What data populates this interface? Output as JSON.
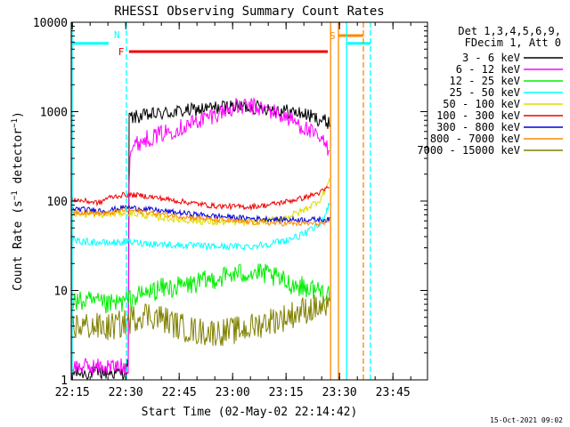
{
  "chart_data": {
    "type": "line",
    "title": "RHESSI Observing Summary Count Rates",
    "xlabel": "Start Time (02-May-02 22:14:42)",
    "ylabel": "Count Rate (s⁻¹ detector⁻¹)",
    "ylabel_main": "Count Rate (s",
    "ylabel_sup1": "−1",
    "ylabel_mid": " detector",
    "ylabel_sup2": "−1",
    "ylabel_end": ")",
    "yscale": "log",
    "ylim": [
      1,
      10000
    ],
    "xlim_minutes": [
      0,
      100
    ],
    "x_ticks": [
      "22:15",
      "22:30",
      "22:45",
      "23:00",
      "23:15",
      "23:30",
      "23:45"
    ],
    "x_tick_minutes": [
      0.3,
      15.3,
      30.3,
      45.3,
      60.3,
      75.3,
      90.3
    ],
    "y_ticks": [
      1,
      10,
      100,
      1000,
      10000
    ],
    "y_tick_labels": [
      "1",
      "10",
      "100",
      "1000",
      "10000"
    ],
    "legend_header": [
      "Det 1,3,4,5,6,9,",
      "FDecim 1, Att 0"
    ],
    "legend_placement": "right",
    "footer_date": "15-Oct-2021 09:02",
    "series": [
      {
        "name": "3 - 6 keV",
        "color": "#000000",
        "x": [
          0,
          14.5,
          16.0,
          16.2,
          25,
          35,
          45,
          55,
          65,
          72.5
        ],
        "y": [
          1.2,
          1.2,
          1.5,
          850,
          950,
          1050,
          1150,
          1100,
          950,
          750
        ]
      },
      {
        "name": "6 - 12 keV",
        "color": "#ff00ff",
        "x": [
          0,
          14.5,
          16.0,
          16.3,
          20,
          30,
          40,
          45,
          50,
          55,
          60,
          65,
          70,
          72.5
        ],
        "y": [
          1.4,
          1.4,
          1.4,
          380,
          480,
          650,
          920,
          1100,
          1150,
          1050,
          880,
          680,
          480,
          380
        ]
      },
      {
        "name": "12 - 25 keV",
        "color": "#00ee00",
        "x": [
          0,
          5,
          10,
          15,
          20,
          25,
          30,
          35,
          40,
          45,
          50,
          55,
          60,
          65,
          70,
          72.5
        ],
        "y": [
          7.5,
          7.5,
          6.8,
          7.5,
          9,
          10.5,
          11,
          12,
          13.5,
          15,
          16,
          15,
          12.5,
          11,
          10,
          9.5
        ]
      },
      {
        "name": "25 - 50 keV",
        "color": "#00ffff",
        "x": [
          0,
          10,
          15,
          20,
          30,
          40,
          50,
          55,
          60,
          65,
          70,
          72.5
        ],
        "y": [
          36,
          34,
          35,
          34,
          32,
          31,
          31,
          33,
          36,
          42,
          55,
          95
        ]
      },
      {
        "name": "50 - 100 keV",
        "color": "#dddd00",
        "x": [
          0,
          10,
          15,
          20,
          30,
          40,
          50,
          55,
          60,
          65,
          70,
          72.5
        ],
        "y": [
          72,
          70,
          75,
          70,
          62,
          58,
          58,
          60,
          65,
          78,
          105,
          170
        ]
      },
      {
        "name": "100 - 300 keV",
        "color": "#ee0000",
        "x": [
          0,
          8,
          10,
          15,
          20,
          30,
          40,
          50,
          55,
          60,
          65,
          70,
          72.5
        ],
        "y": [
          105,
          95,
          108,
          118,
          115,
          100,
          88,
          86,
          90,
          98,
          108,
          125,
          145
        ]
      },
      {
        "name": "300 - 800 keV",
        "color": "#0000dd",
        "x": [
          0,
          10,
          15,
          20,
          30,
          40,
          50,
          60,
          70,
          72.5
        ],
        "y": [
          82,
          78,
          85,
          82,
          74,
          68,
          64,
          62,
          62,
          62
        ]
      },
      {
        "name": "800 - 7000 keV",
        "color": "#ff8800",
        "x": [
          0,
          10,
          15,
          20,
          30,
          40,
          50,
          60,
          70,
          72.5
        ],
        "y": [
          76,
          72,
          80,
          76,
          68,
          62,
          58,
          56,
          56,
          56
        ]
      },
      {
        "name": "7000 - 15000 keV",
        "color": "#808000",
        "x": [
          0,
          5,
          10,
          15,
          20,
          25,
          30,
          35,
          40,
          45,
          50,
          55,
          60,
          65,
          70,
          72.5
        ],
        "y": [
          4,
          4,
          3.8,
          4.3,
          5.5,
          5,
          4,
          3.5,
          3.4,
          3.5,
          3.8,
          4.5,
          5,
          6,
          6.5,
          6
        ]
      }
    ],
    "flags": [
      {
        "label": "N",
        "color": "#00ffff",
        "segments": [
          [
            0,
            10.5
          ],
          [
            77.5,
            84
          ]
        ],
        "level": 5800
      },
      {
        "label": "F",
        "color": "#ee0000",
        "segments": [
          [
            16.2,
            72
          ]
        ],
        "level": 4700
      },
      {
        "label": "S",
        "color": "#ff8800",
        "segments": [
          [
            75,
            82
          ]
        ],
        "level": 7100
      }
    ],
    "vertical_lines": [
      {
        "color": "#00ffff",
        "x": 0,
        "style": "solid"
      },
      {
        "color": "#00ffff",
        "x": 15.5,
        "style": "dashed"
      },
      {
        "color": "#ff8800",
        "x": 72.8,
        "style": "solid"
      },
      {
        "color": "#ff8800",
        "x": 75.0,
        "style": "solid"
      },
      {
        "color": "#00ffff",
        "x": 77.3,
        "style": "solid"
      },
      {
        "color": "#ff8800",
        "x": 82.0,
        "style": "dashed"
      },
      {
        "color": "#00ffff",
        "x": 84.0,
        "style": "dashed"
      }
    ]
  }
}
